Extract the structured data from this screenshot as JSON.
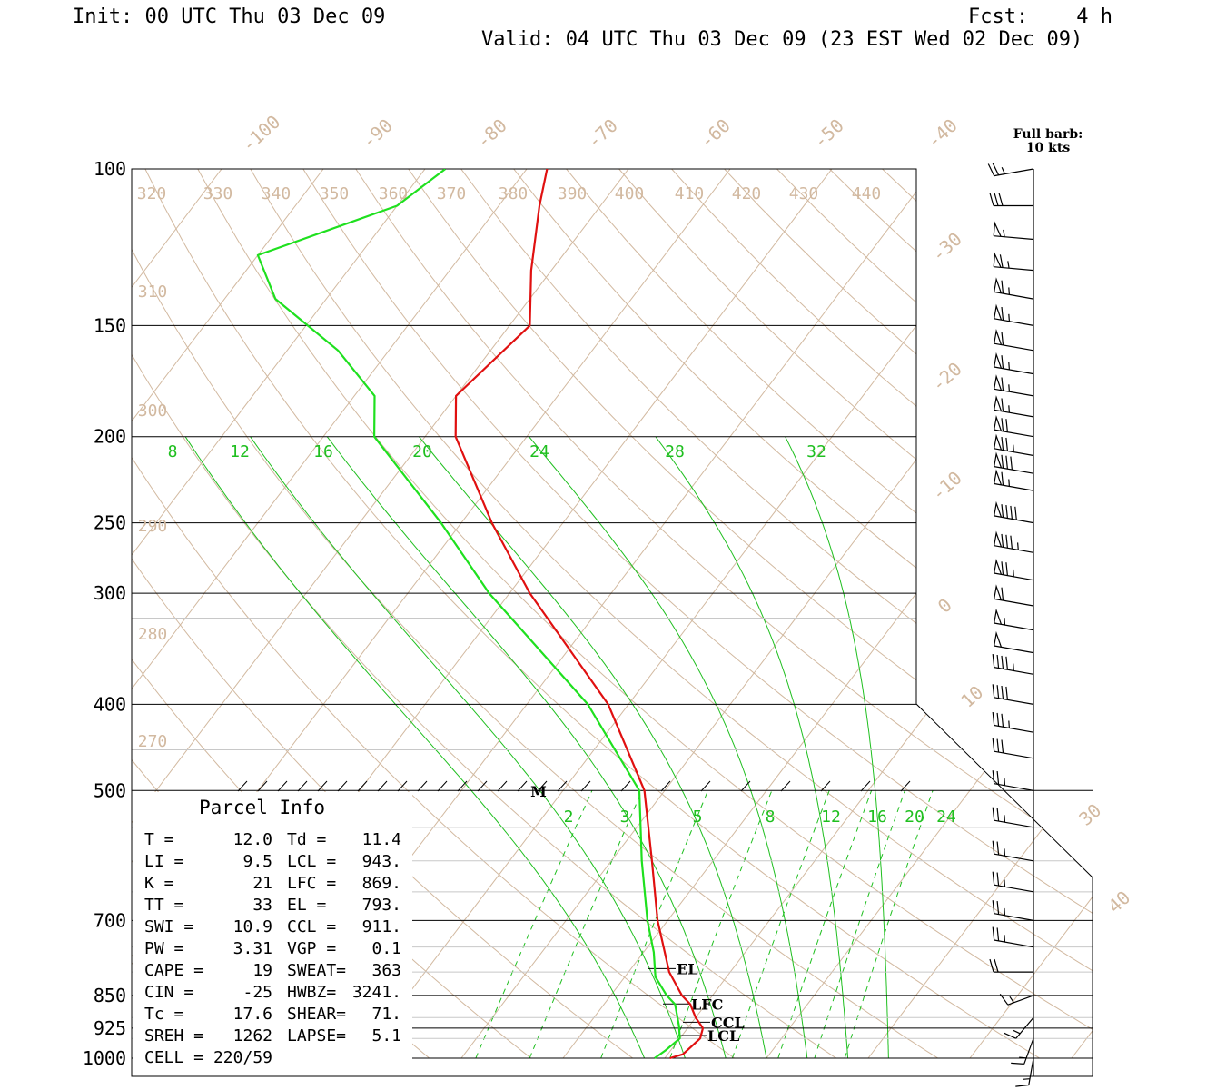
{
  "header": {
    "init": "Init: 00 UTC Thu 03 Dec 09",
    "fcst": "Fcst:    4 h",
    "valid": "Valid: 04 UTC Thu 03 Dec 09 (23 EST Wed 02 Dec 09)"
  },
  "colors": {
    "temperature": "#e01010",
    "dewpoint": "#1fe01f",
    "mixing_ratio": "#1fbf1f",
    "grid_tan": "#d2b9a0"
  },
  "wind_barb_title": [
    "Full barb:",
    "10 kts"
  ],
  "parcel_info": {
    "title": "Parcel Info",
    "rows": [
      [
        "T  =",
        "12.0",
        "Td =",
        "11.4"
      ],
      [
        "LI =",
        "9.5",
        "LCL =",
        "943."
      ],
      [
        "K  =",
        "21",
        "LFC =",
        "869."
      ],
      [
        "TT =",
        "33",
        "EL  =",
        "793."
      ],
      [
        "SWI =",
        "10.9",
        "CCL =",
        "911."
      ],
      [
        "PW =",
        "3.31",
        "VGP =",
        "0.1"
      ],
      [
        "CAPE =",
        "19",
        "SWEAT=",
        "363"
      ],
      [
        "CIN =",
        "-25",
        "HWBZ=",
        "3241."
      ],
      [
        "Tc =",
        "17.6",
        "SHEAR=",
        "71."
      ],
      [
        "SREH =",
        "1262",
        "LAPSE=",
        "5.1"
      ],
      [
        "CELL =",
        "220/59",
        "",
        ""
      ]
    ]
  },
  "level_markers": [
    "EL",
    "LFC",
    "CCL",
    "LCL"
  ],
  "max_wind_marker": "M",
  "chart_data": {
    "type": "line",
    "pressure_labels": [
      "100",
      "150",
      "200",
      "250",
      "300",
      "400",
      "500",
      "700",
      "850",
      "925",
      "1000"
    ],
    "isotherm_labels": [
      "-100",
      "-90",
      "-80",
      "-70",
      "-60",
      "-50",
      "-40",
      "-30",
      "-20",
      "-10",
      "0",
      "10",
      "30",
      "40"
    ],
    "theta_labels": [
      "320",
      "330",
      "340",
      "350",
      "360",
      "370",
      "380",
      "390",
      "400",
      "410",
      "420",
      "430",
      "440",
      "310",
      "300",
      "290",
      "280",
      "270"
    ],
    "mixing_ratio_labels_upper": [
      "8",
      "12",
      "16",
      "20",
      "24",
      "28",
      "32"
    ],
    "mixing_ratio_labels_lower": [
      "2",
      "3",
      "5",
      "8",
      "12",
      "16",
      "20",
      "24"
    ],
    "series": [
      {
        "key": "temperature",
        "values": [
          [
            1000,
            10.5
          ],
          [
            990,
            11.5
          ],
          [
            950,
            12.0
          ],
          [
            925,
            11.5
          ],
          [
            900,
            10.0
          ],
          [
            870,
            8.5
          ],
          [
            850,
            7.0
          ],
          [
            800,
            4.0
          ],
          [
            700,
            -1.0
          ],
          [
            600,
            -6.0
          ],
          [
            500,
            -12.0
          ],
          [
            400,
            -22.0
          ],
          [
            300,
            -38.0
          ],
          [
            250,
            -47.0
          ],
          [
            200,
            -57.0
          ],
          [
            180,
            -60.0
          ],
          [
            150,
            -58.0
          ],
          [
            130,
            -62.0
          ],
          [
            110,
            -66.0
          ],
          [
            100,
            -68.0
          ]
        ]
      },
      {
        "key": "dewpoint",
        "values": [
          [
            1000,
            9.0
          ],
          [
            980,
            9.5
          ],
          [
            950,
            10.0
          ],
          [
            920,
            9.0
          ],
          [
            870,
            7.0
          ],
          [
            850,
            5.5
          ],
          [
            810,
            3.0
          ],
          [
            760,
            1.0
          ],
          [
            700,
            -2.0
          ],
          [
            600,
            -7.0
          ],
          [
            500,
            -12.5
          ],
          [
            400,
            -24.0
          ],
          [
            300,
            -42.0
          ],
          [
            250,
            -52.0
          ],
          [
            200,
            -65.0
          ],
          [
            180,
            -68.0
          ],
          [
            160,
            -75.0
          ],
          [
            140,
            -85.0
          ],
          [
            125,
            -90.0
          ],
          [
            110,
            -80.0
          ],
          [
            100,
            -78.0
          ]
        ]
      }
    ],
    "winds_kt": [
      [
        100,
        260,
        25
      ],
      [
        110,
        270,
        30
      ],
      [
        120,
        275,
        55
      ],
      [
        130,
        275,
        65
      ],
      [
        140,
        280,
        65
      ],
      [
        150,
        280,
        65
      ],
      [
        160,
        280,
        60
      ],
      [
        170,
        280,
        65
      ],
      [
        180,
        280,
        65
      ],
      [
        190,
        280,
        65
      ],
      [
        200,
        280,
        70
      ],
      [
        210,
        280,
        75
      ],
      [
        220,
        280,
        80
      ],
      [
        230,
        280,
        65
      ],
      [
        250,
        280,
        90
      ],
      [
        270,
        280,
        85
      ],
      [
        290,
        280,
        75
      ],
      [
        310,
        280,
        60
      ],
      [
        330,
        280,
        55
      ],
      [
        350,
        280,
        50
      ],
      [
        370,
        280,
        45
      ],
      [
        400,
        280,
        40
      ],
      [
        430,
        280,
        35
      ],
      [
        460,
        280,
        30
      ],
      [
        500,
        280,
        25
      ],
      [
        550,
        280,
        25
      ],
      [
        600,
        280,
        25
      ],
      [
        650,
        280,
        25
      ],
      [
        700,
        280,
        25
      ],
      [
        750,
        280,
        25
      ],
      [
        800,
        270,
        20
      ],
      [
        850,
        250,
        15
      ],
      [
        900,
        220,
        15
      ],
      [
        950,
        200,
        15
      ],
      [
        1000,
        190,
        15
      ]
    ]
  }
}
